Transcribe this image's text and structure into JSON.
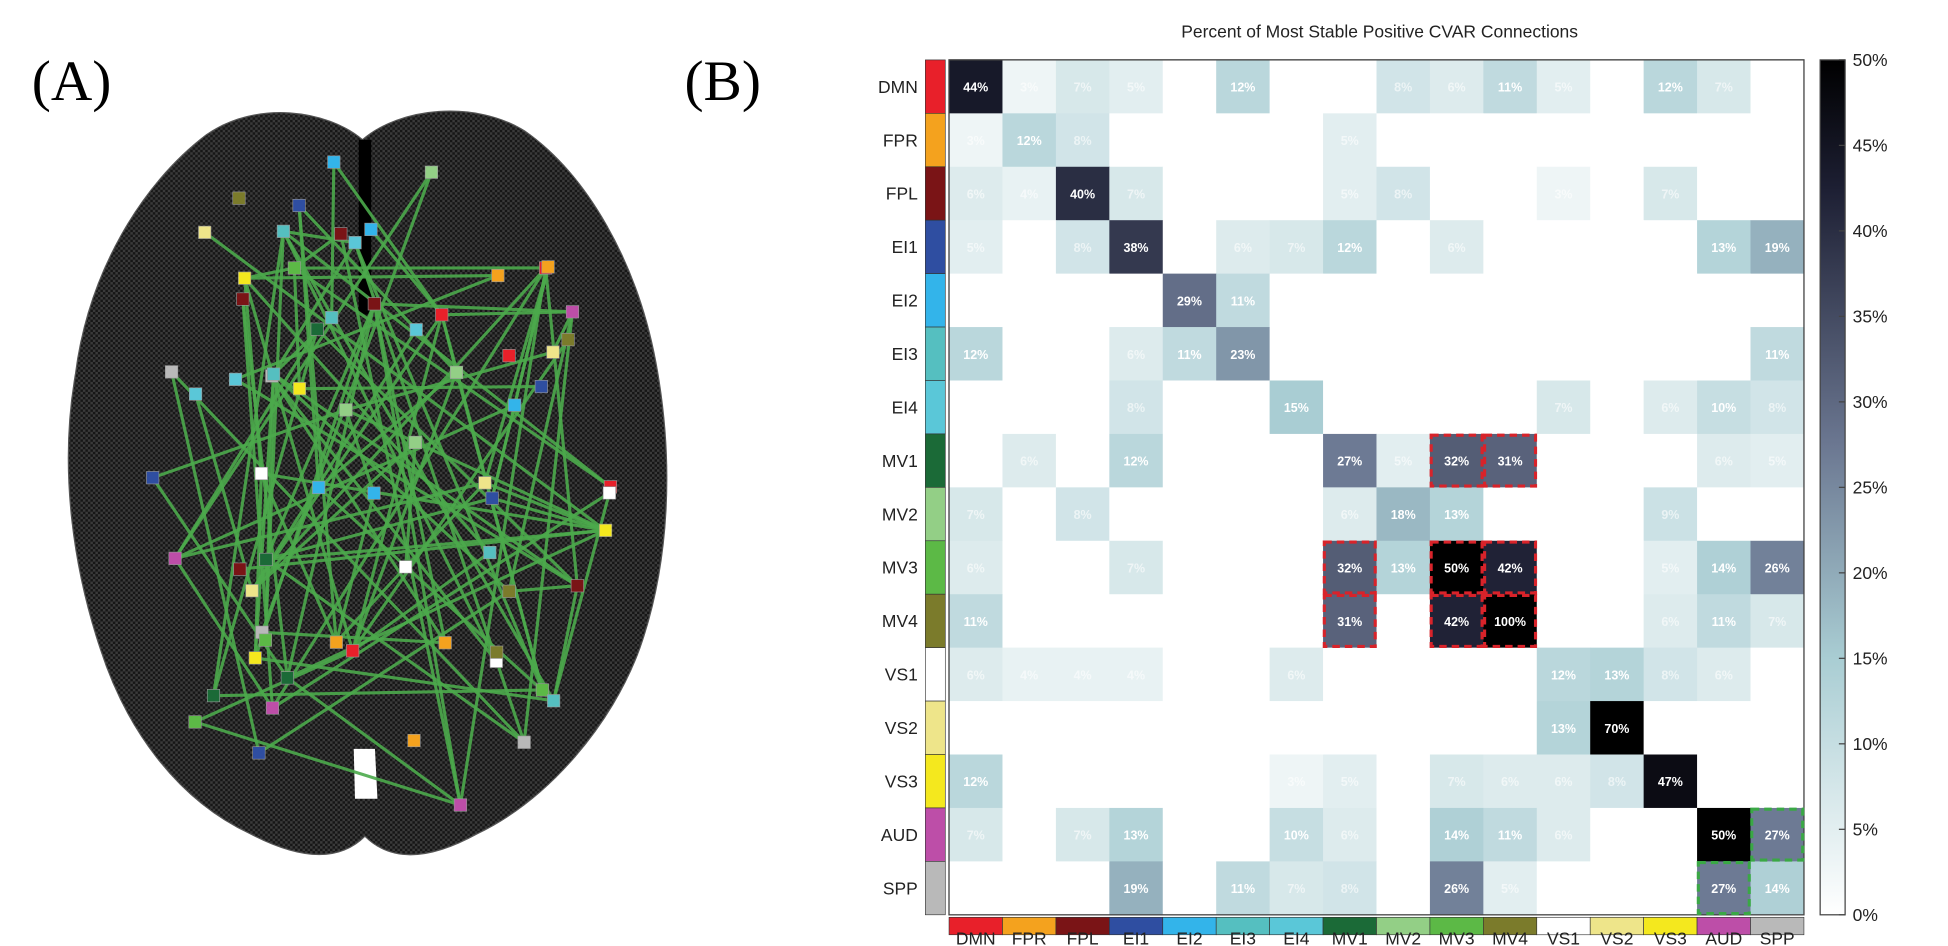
{
  "panel_labels": [
    "(A)",
    "(B)"
  ],
  "chart_data": {
    "type": "heatmap",
    "title": "Percent of Most Stable Positive CVAR Connections",
    "categories": [
      "DMN",
      "FPR",
      "FPL",
      "EI1",
      "EI2",
      "EI3",
      "EI4",
      "MV1",
      "MV2",
      "MV3",
      "MV4",
      "VS1",
      "VS2",
      "VS3",
      "AUD",
      "SPP"
    ],
    "category_colors": [
      "#e8202a",
      "#f4a21e",
      "#7a1416",
      "#2f4ea1",
      "#33b4ea",
      "#55bfc0",
      "#5ac7d8",
      "#1b6a37",
      "#93cf86",
      "#5cb946",
      "#7b7b2b",
      "#ffffff",
      "#eee58a",
      "#f4e81e",
      "#bd4ea8",
      "#b9b9b9"
    ],
    "values": [
      [
        44,
        3,
        7,
        5,
        0,
        12,
        0,
        0,
        8,
        6,
        11,
        5,
        0,
        12,
        7,
        0
      ],
      [
        3,
        12,
        8,
        0,
        0,
        0,
        0,
        5,
        0,
        0,
        0,
        0,
        0,
        0,
        0,
        0
      ],
      [
        6,
        4,
        40,
        7,
        0,
        0,
        0,
        5,
        8,
        0,
        0,
        3,
        0,
        7,
        0,
        0
      ],
      [
        5,
        0,
        8,
        38,
        0,
        6,
        7,
        12,
        0,
        6,
        0,
        0,
        0,
        0,
        13,
        19
      ],
      [
        0,
        0,
        0,
        0,
        29,
        11,
        0,
        0,
        0,
        0,
        0,
        0,
        0,
        0,
        0,
        0
      ],
      [
        12,
        0,
        0,
        6,
        11,
        23,
        0,
        0,
        0,
        0,
        0,
        0,
        0,
        0,
        0,
        11
      ],
      [
        0,
        0,
        0,
        8,
        0,
        0,
        15,
        0,
        0,
        0,
        0,
        7,
        0,
        6,
        10,
        8
      ],
      [
        0,
        6,
        0,
        12,
        0,
        0,
        0,
        27,
        5,
        32,
        31,
        0,
        0,
        0,
        6,
        5
      ],
      [
        7,
        0,
        8,
        0,
        0,
        0,
        0,
        6,
        18,
        13,
        0,
        0,
        0,
        9,
        0,
        0
      ],
      [
        6,
        0,
        0,
        7,
        0,
        0,
        0,
        32,
        13,
        50,
        42,
        0,
        0,
        5,
        14,
        26
      ],
      [
        11,
        0,
        0,
        0,
        0,
        0,
        0,
        31,
        0,
        42,
        100,
        0,
        0,
        6,
        11,
        7
      ],
      [
        6,
        4,
        4,
        4,
        0,
        0,
        6,
        0,
        0,
        0,
        0,
        12,
        13,
        8,
        6,
        0
      ],
      [
        0,
        0,
        0,
        0,
        0,
        0,
        0,
        0,
        0,
        0,
        0,
        13,
        70,
        0,
        0,
        0
      ],
      [
        12,
        0,
        0,
        0,
        0,
        0,
        3,
        5,
        0,
        7,
        6,
        6,
        8,
        47,
        0,
        0
      ],
      [
        7,
        0,
        7,
        13,
        0,
        0,
        10,
        6,
        0,
        14,
        11,
        6,
        0,
        0,
        50,
        27
      ],
      [
        0,
        0,
        0,
        19,
        0,
        11,
        7,
        8,
        0,
        26,
        5,
        0,
        0,
        0,
        27,
        14
      ]
    ],
    "value_labels": [
      [
        "44%",
        "3%",
        "7%",
        "5%",
        null,
        "12%",
        null,
        null,
        "8%",
        "6%",
        "11%",
        "5%",
        null,
        "12%",
        "7%",
        null
      ],
      [
        "3%",
        "12%",
        "8%",
        null,
        null,
        null,
        null,
        "5%",
        null,
        null,
        null,
        null,
        null,
        null,
        null,
        null
      ],
      [
        "6%",
        "4%",
        "40%",
        "7%",
        null,
        null,
        null,
        "5%",
        "8%",
        null,
        null,
        "3%",
        null,
        "7%",
        null,
        null
      ],
      [
        "5%",
        null,
        "8%",
        "38%",
        null,
        "6%",
        "7%",
        "12%",
        null,
        "6%",
        null,
        null,
        null,
        null,
        "13%",
        "19%"
      ],
      [
        null,
        null,
        null,
        null,
        "29%",
        "11%",
        null,
        null,
        null,
        null,
        null,
        null,
        null,
        null,
        null,
        null
      ],
      [
        "12%",
        null,
        null,
        "6%",
        "11%",
        "23%",
        null,
        null,
        null,
        null,
        null,
        null,
        null,
        null,
        null,
        "11%"
      ],
      [
        null,
        null,
        null,
        "8%",
        null,
        null,
        "15%",
        null,
        null,
        null,
        null,
        "7%",
        null,
        "6%",
        "10%",
        "8%"
      ],
      [
        null,
        "6%",
        null,
        "12%",
        null,
        null,
        null,
        "27%",
        "5%",
        "32%",
        "31%",
        null,
        null,
        null,
        "6%",
        "5%"
      ],
      [
        "7%",
        null,
        "8%",
        null,
        null,
        null,
        null,
        "6%",
        "18%",
        "13%",
        null,
        null,
        null,
        "9%",
        null,
        null
      ],
      [
        "6%",
        null,
        null,
        "7%",
        null,
        null,
        null,
        "32%",
        "13%",
        "50%",
        "42%",
        null,
        null,
        "5%",
        "14%",
        "26%"
      ],
      [
        "11%",
        null,
        null,
        null,
        null,
        null,
        null,
        "31%",
        null,
        "42%",
        "100%",
        null,
        null,
        "6%",
        "11%",
        "7%"
      ],
      [
        "6%",
        "4%",
        "4%",
        "4%",
        null,
        null,
        "6%",
        null,
        null,
        null,
        null,
        "12%",
        "13%",
        "8%",
        "6%",
        null
      ],
      [
        null,
        null,
        null,
        null,
        null,
        null,
        null,
        null,
        null,
        null,
        null,
        "13%",
        "70%",
        null,
        null,
        null
      ],
      [
        "12%",
        null,
        null,
        null,
        null,
        null,
        "3%",
        "5%",
        null,
        "7%",
        "6%",
        "6%",
        "8%",
        "47%",
        null,
        null
      ],
      [
        "7%",
        null,
        "7%",
        "13%",
        null,
        null,
        "10%",
        "6%",
        null,
        "14%",
        "11%",
        "6%",
        null,
        null,
        "50%",
        "27%"
      ],
      [
        null,
        null,
        null,
        "19%",
        null,
        "11%",
        "7%",
        "8%",
        null,
        "26%",
        "5%",
        null,
        null,
        null,
        "27%",
        "14%"
      ]
    ],
    "zlim": [
      0,
      50
    ],
    "colorbar_ticks": [
      {
        "value": 0,
        "label": "0%"
      },
      {
        "value": 5,
        "label": "5%"
      },
      {
        "value": 10,
        "label": "10%"
      },
      {
        "value": 15,
        "label": "15%"
      },
      {
        "value": 20,
        "label": "20%"
      },
      {
        "value": 25,
        "label": "25%"
      },
      {
        "value": 30,
        "label": "30%"
      },
      {
        "value": 35,
        "label": "35%"
      },
      {
        "value": 40,
        "label": "40%"
      },
      {
        "value": 45,
        "label": "45%"
      },
      {
        "value": 50,
        "label": "50%"
      }
    ]
  }
}
